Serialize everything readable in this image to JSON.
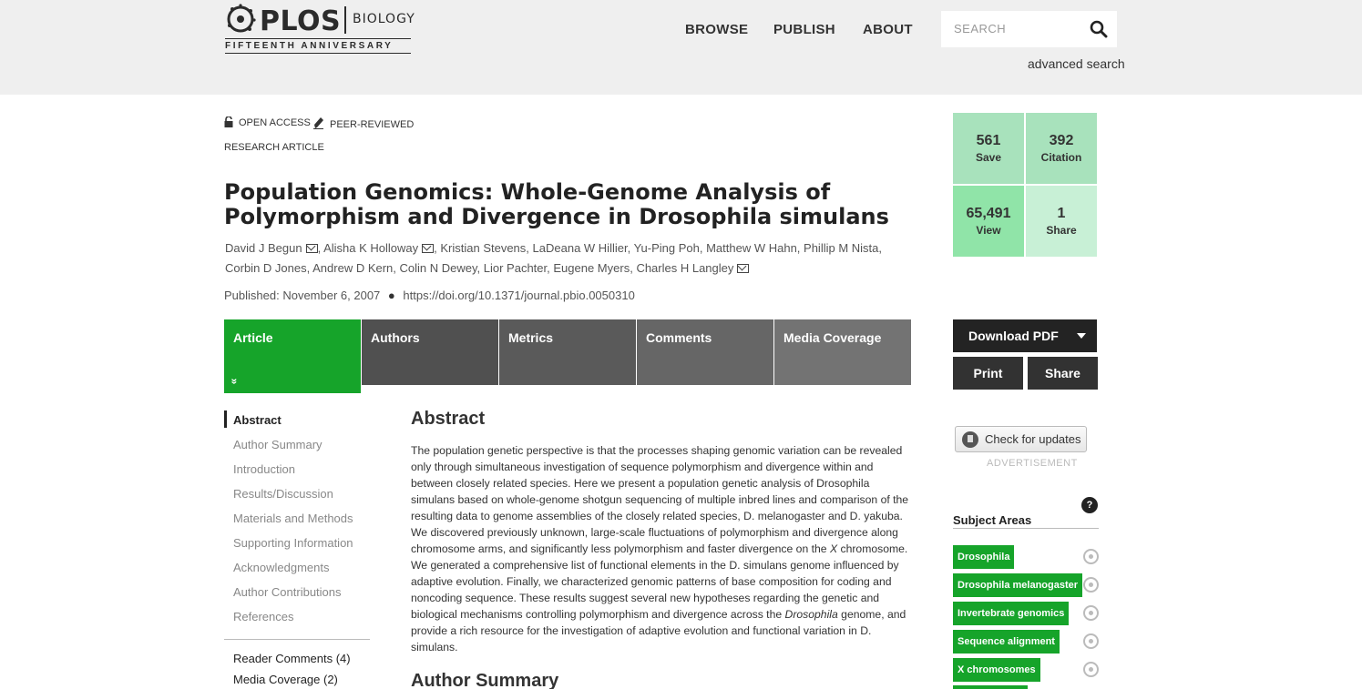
{
  "header": {
    "logo_brand": "PLOS",
    "logo_journal": "BIOLOGY",
    "logo_anniversary": "FIFTEENTH ANNIVERSARY",
    "nav": [
      "BROWSE",
      "PUBLISH",
      "ABOUT"
    ],
    "search_placeholder": "SEARCH",
    "advanced_search": "advanced search"
  },
  "article": {
    "badges": [
      "OPEN ACCESS",
      "PEER-REVIEWED"
    ],
    "type": "RESEARCH ARTICLE",
    "title": "Population Genomics: Whole-Genome Analysis of Polymorphism and Divergence in Drosophila simulans",
    "authors": [
      {
        "name": "David J Begun",
        "mail": true
      },
      {
        "name": "Alisha K Holloway",
        "mail": true
      },
      {
        "name": "Kristian Stevens",
        "mail": false
      },
      {
        "name": "LaDeana W Hillier",
        "mail": false
      },
      {
        "name": "Yu-Ping Poh",
        "mail": false
      },
      {
        "name": "Matthew W Hahn",
        "mail": false
      },
      {
        "name": "Phillip M Nista",
        "mail": false
      },
      {
        "name": "Corbin D Jones",
        "mail": false
      },
      {
        "name": "Andrew D Kern",
        "mail": false
      },
      {
        "name": "Colin N Dewey",
        "mail": false
      },
      {
        "name": "Lior Pachter",
        "mail": false
      },
      {
        "name": "Eugene Myers",
        "mail": false
      },
      {
        "name": "Charles H Langley",
        "mail": true
      }
    ],
    "published": "Published: November 6, 2007",
    "doi": "https://doi.org/10.1371/journal.pbio.0050310"
  },
  "tabs": [
    "Article",
    "Authors",
    "Metrics",
    "Comments",
    "Media Coverage"
  ],
  "tab_expand_glyph": "»",
  "toc": {
    "items": [
      "Abstract",
      "Author Summary",
      "Introduction",
      "Results/Discussion",
      "Materials and Methods",
      "Supporting Information",
      "Acknowledgments",
      "Author Contributions",
      "References"
    ],
    "extra": [
      "Reader Comments (4)",
      "Media Coverage (2)"
    ]
  },
  "abstract": {
    "heading": "Abstract",
    "text_before_x": "The population genetic perspective is that the processes shaping genomic variation can be revealed only through simultaneous investigation of sequence polymorphism and divergence within and between closely related species. Here we present a population genetic analysis of Drosophila simulans based on whole-genome shotgun sequencing of multiple inbred lines and comparison of the resulting data to genome assemblies of the closely related species, D. melanogaster and D. yakuba. We discovered previously unknown, large-scale fluctuations of polymorphism and divergence along chromosome arms, and significantly less polymorphism and faster divergence on the ",
    "x_italic": "X",
    "text_mid": " chromosome. We generated a comprehensive list of functional elements in the D. simulans genome influenced by adaptive evolution. Finally, we characterized genomic patterns of base composition for coding and noncoding sequence. These results suggest several new hypotheses regarding the genetic and biological mechanisms controlling polymorphism and divergence across the ",
    "dros_italic": "Drosophila",
    "text_after": " genome, and provide a rich resource for the investigation of adaptive evolution and functional variation in D. simulans."
  },
  "next_heading": "Author Summary",
  "metrics": [
    {
      "value": "561",
      "label": "Save",
      "color": "#a8e2bc"
    },
    {
      "value": "392",
      "label": "Citation",
      "color": "#a8e2bc"
    },
    {
      "value": "65,491",
      "label": "View",
      "color": "#90e4a8"
    },
    {
      "value": "1",
      "label": "Share",
      "color": "#c8f0d6"
    }
  ],
  "actions": {
    "download": "Download PDF",
    "print": "Print",
    "share": "Share",
    "check_updates": "Check for updates",
    "advertisement": "ADVERTISEMENT"
  },
  "subject_areas": {
    "heading": "Subject Areas",
    "help_glyph": "?",
    "tags": [
      "Drosophila",
      "Drosophila melanogaster",
      "Invertebrate genomics",
      "Sequence alignment",
      "X chromosomes"
    ]
  },
  "colors": {
    "accent_green": "#16a42a",
    "tab_gray": "#505050",
    "header_bg": "#efefef"
  }
}
